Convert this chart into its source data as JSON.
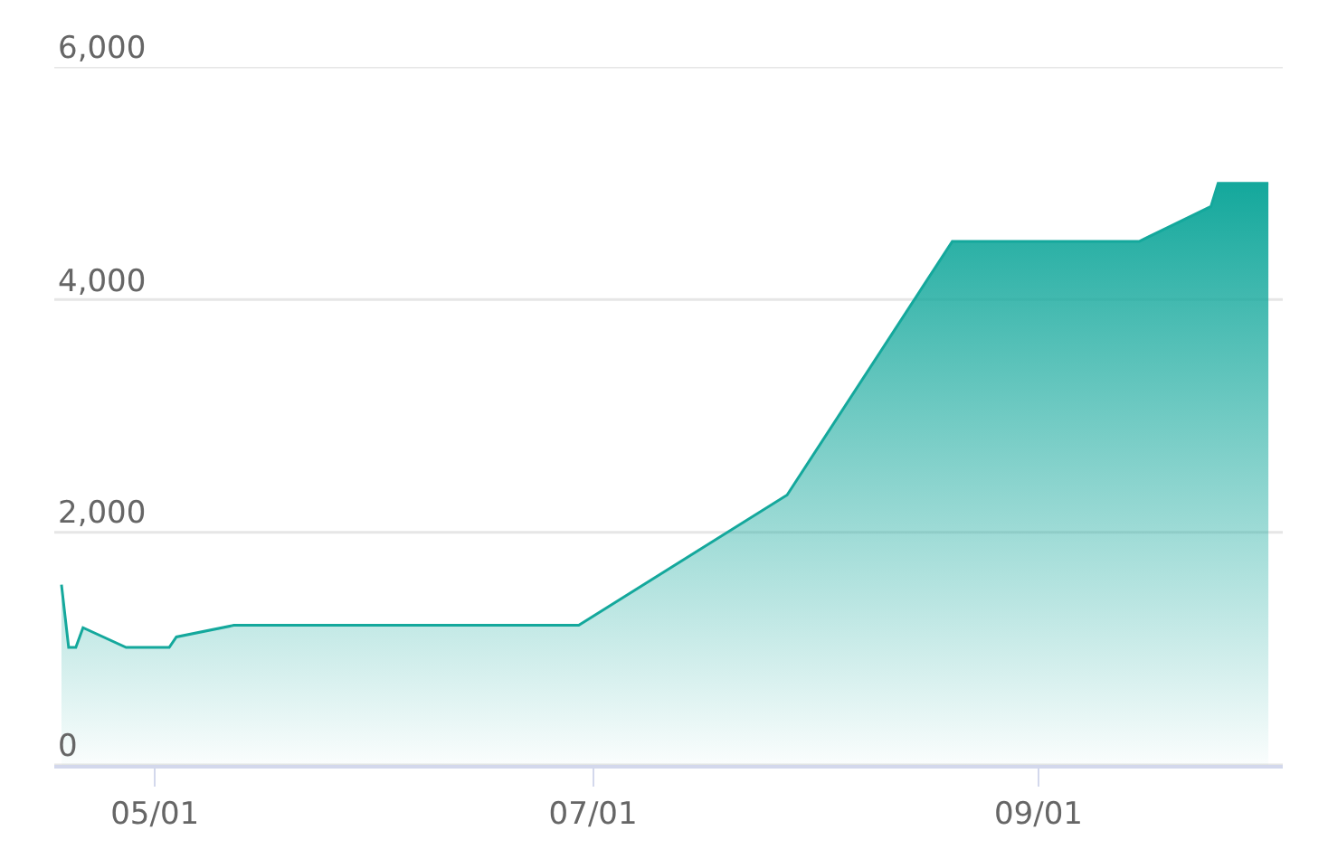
{
  "chart_data": {
    "type": "area",
    "x": [
      "--04-18",
      "--04-19",
      "--04-20",
      "--04-21",
      "--04-27",
      "--05-03",
      "--05-04",
      "--05-12",
      "--06-29",
      "--07-28",
      "--08-20",
      "--09-15",
      "--09-25",
      "--09-26",
      "--10-03"
    ],
    "series": [
      {
        "color": "#14a89c",
        "values": [
          1550,
          1010,
          1010,
          1180,
          1010,
          1010,
          1100,
          1200,
          1200,
          2320,
          4500,
          4500,
          4800,
          5000,
          5000
        ]
      }
    ],
    "xlim": [
      "--04-17",
      "--10-05"
    ],
    "xticks": [
      {
        "value": "--05-01",
        "label": "05/01"
      },
      {
        "value": "--07-01",
        "label": "07/01"
      },
      {
        "value": "--09-01",
        "label": "09/01"
      }
    ],
    "ylim": [
      0,
      6000
    ],
    "yticks": [
      0,
      {
        "value": 2000,
        "label": "2,000"
      },
      {
        "value": 4000,
        "label": "4,000"
      },
      {
        "value": 6000,
        "label": "6,000"
      }
    ],
    "grid": "y",
    "marker": "none",
    "line_style": "solid"
  }
}
